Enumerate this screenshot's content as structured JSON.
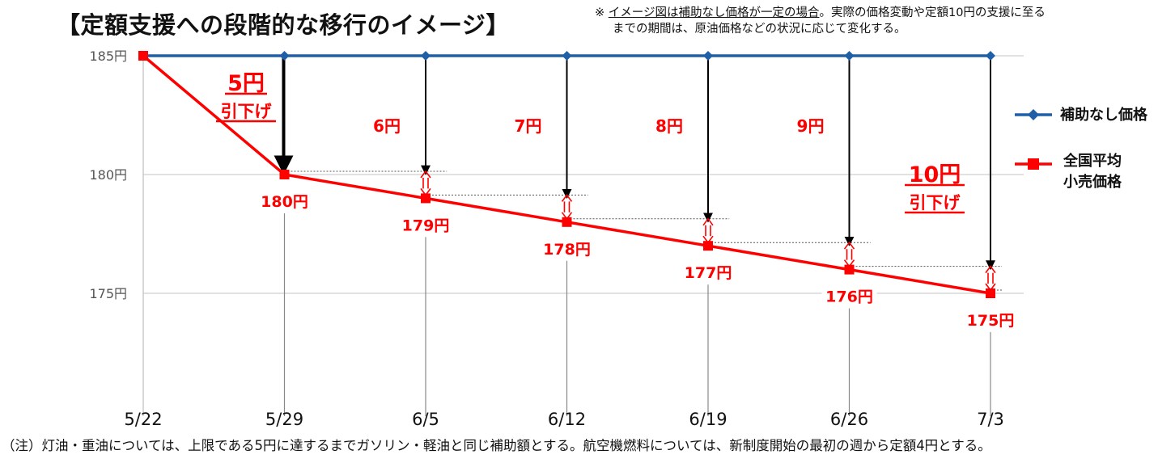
{
  "title": "【定額支援への段階的な移行のイメージ】",
  "note": {
    "mark": "※ ",
    "underlined": "イメージ図は補助なし価格が一定の場合",
    "rest1": "。実際の価格変動や定額10円の支援に至る",
    "line2": "までの期間は、原油価格などの状況に応じて変化する。"
  },
  "footnote": "（注）灯油・重油については、上限である5円に達するまでガソリン・軽油と同じ補助額とする。航空機燃料については、新制度開始の最初の週から定額4円とする。",
  "colors": {
    "no_subsidy": "#1f5fa8",
    "retail": "#ff0000",
    "arrow": "#000000"
  },
  "chart_data": {
    "type": "line",
    "categories": [
      "5/22",
      "5/29",
      "6/5",
      "6/12",
      "6/19",
      "6/26",
      "7/3"
    ],
    "ylim": [
      170,
      185
    ],
    "yticks": [
      185,
      180,
      175
    ],
    "ytick_labels": [
      "185円",
      "180円",
      "175円"
    ],
    "series": [
      {
        "name": "補助なし価格",
        "values": [
          185,
          185,
          185,
          185,
          185,
          185,
          185
        ],
        "marker": "diamond"
      },
      {
        "name": "全国平均\n小売価格",
        "values": [
          185,
          180,
          179,
          178,
          177,
          176,
          175
        ],
        "marker": "square"
      }
    ],
    "point_labels": [
      "",
      "180円",
      "179円",
      "178円",
      "177円",
      "176円",
      "175円"
    ],
    "gap_labels": [
      "",
      "",
      "6円",
      "7円",
      "8円",
      "9円",
      ""
    ],
    "annotations": [
      {
        "at": "5/29",
        "amount": "5円",
        "text": "引下げ"
      },
      {
        "at": "7/3",
        "amount": "10円",
        "text": "引下げ"
      }
    ],
    "legend": [
      "補助なし価格",
      "全国平均",
      "小売価格"
    ],
    "legend_position": "right"
  }
}
